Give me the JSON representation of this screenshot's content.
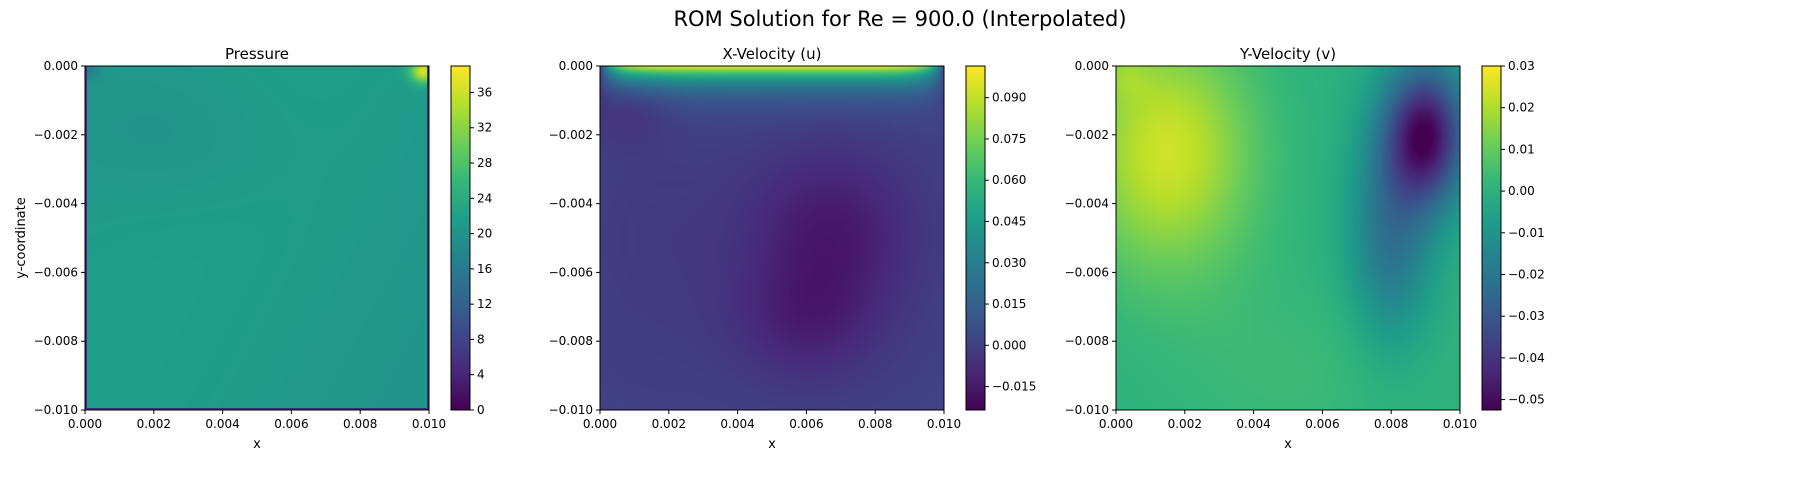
{
  "figure_title": "ROM Solution for Re = 900.0 (Interpolated)",
  "colormap": [
    "#440154",
    "#482878",
    "#3e4989",
    "#31688e",
    "#26828e",
    "#1f9e89",
    "#35b779",
    "#6ece58",
    "#b5de2b",
    "#fde725"
  ],
  "chart_data": [
    {
      "type": "heatmap",
      "title": "Pressure",
      "xlabel": "x",
      "ylabel": "y-coordinate",
      "xlim": [
        0,
        0.01
      ],
      "ylim": [
        -0.01,
        0
      ],
      "xticks": [
        "0.000",
        "0.002",
        "0.004",
        "0.006",
        "0.008",
        "0.010"
      ],
      "yticks": [
        "0.000",
        "−0.002",
        "−0.004",
        "−0.006",
        "−0.008",
        "−0.010"
      ],
      "colorbar": {
        "min": 0,
        "max": 39,
        "ticks": [
          "0",
          "4",
          "8",
          "12",
          "16",
          "20",
          "24",
          "28",
          "32",
          "36"
        ]
      },
      "field": "pressure"
    },
    {
      "type": "heatmap",
      "title": "X-Velocity (u)",
      "xlabel": "x",
      "ylabel": "",
      "xlim": [
        0,
        0.01
      ],
      "ylim": [
        -0.01,
        0
      ],
      "xticks": [
        "0.000",
        "0.002",
        "0.004",
        "0.006",
        "0.008",
        "0.010"
      ],
      "yticks": [
        "0.000",
        "−0.002",
        "−0.004",
        "−0.006",
        "−0.008",
        "−0.010"
      ],
      "colorbar": {
        "min": -0.0235,
        "max": 0.1015,
        "ticks": [
          "−0.015",
          "0.000",
          "0.015",
          "0.030",
          "0.045",
          "0.060",
          "0.075",
          "0.090"
        ]
      },
      "field": "u"
    },
    {
      "type": "heatmap",
      "title": "Y-Velocity (v)",
      "xlabel": "x",
      "ylabel": "",
      "xlim": [
        0,
        0.01
      ],
      "ylim": [
        -0.01,
        0
      ],
      "xticks": [
        "0.000",
        "0.002",
        "0.004",
        "0.006",
        "0.008",
        "0.010"
      ],
      "yticks": [
        "0.000",
        "−0.002",
        "−0.004",
        "−0.006",
        "−0.008",
        "−0.010"
      ],
      "colorbar": {
        "min": -0.0525,
        "max": 0.03,
        "ticks": [
          "−0.05",
          "−0.04",
          "−0.03",
          "−0.02",
          "−0.01",
          "0.00",
          "0.01",
          "0.02",
          "0.03"
        ]
      },
      "field": "v"
    }
  ]
}
